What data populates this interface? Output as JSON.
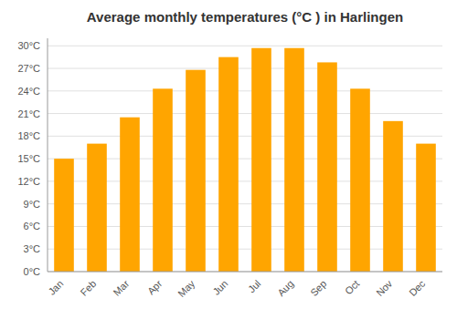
{
  "chart_data": {
    "type": "bar",
    "title": "Average monthly temperatures (°C ) in Harlingen",
    "categories": [
      "Jan",
      "Feb",
      "Mar",
      "Apr",
      "May",
      "Jun",
      "Jul",
      "Aug",
      "Sep",
      "Oct",
      "Nov",
      "Dec"
    ],
    "values": [
      15,
      17,
      20.5,
      24.3,
      26.8,
      28.5,
      29.7,
      29.7,
      27.8,
      24.3,
      20,
      17
    ],
    "color": "#FFA500",
    "ylim": [
      0,
      31
    ],
    "yticks": [
      {
        "value": 0,
        "label": "0°C"
      },
      {
        "value": 3,
        "label": "3°C"
      },
      {
        "value": 6,
        "label": "6°C"
      },
      {
        "value": 9,
        "label": "9°C"
      },
      {
        "value": 12,
        "label": "12°C"
      },
      {
        "value": 15,
        "label": "15°C"
      },
      {
        "value": 18,
        "label": "18°C"
      },
      {
        "value": 21,
        "label": "21°C"
      },
      {
        "value": 24,
        "label": "24°C"
      },
      {
        "value": 27,
        "label": "27°C"
      },
      {
        "value": 30,
        "label": "30°C"
      }
    ],
    "grid": true
  }
}
